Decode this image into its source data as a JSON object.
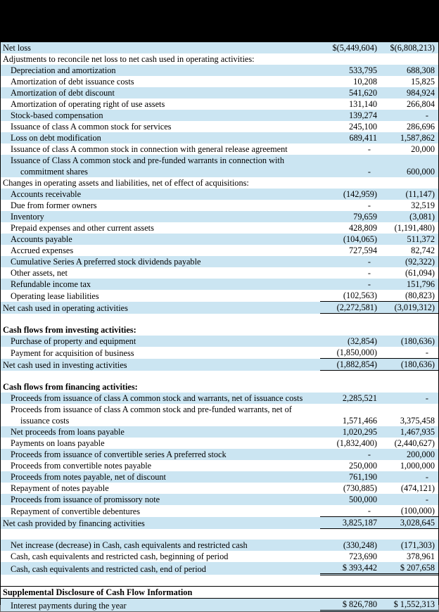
{
  "colors": {
    "row_shade": "#cbe5f2",
    "band": "#000000",
    "text": "#000000"
  },
  "table": {
    "name": "consolidated-statement-of-cash-flows",
    "rows": [
      {
        "label": "Net loss",
        "v1": "$(5,449,604)",
        "v2": "$(6,808,213)",
        "indent": 0,
        "shade": true
      },
      {
        "label": "Adjustments to reconcile net loss to net cash used in operating activities:",
        "v1": "",
        "v2": "",
        "indent": 0
      },
      {
        "label": "Depreciation and amortization",
        "v1": "533,795",
        "v2": "688,308",
        "indent": 1,
        "shade": true
      },
      {
        "label": "Amortization of debt issuance costs",
        "v1": "10,208",
        "v2": "15,825",
        "indent": 1
      },
      {
        "label": "Amortization of debt discount",
        "v1": "541,620",
        "v2": "984,924",
        "indent": 1,
        "shade": true
      },
      {
        "label": "Amortization of operating right of use assets",
        "v1": "131,140",
        "v2": "266,804",
        "indent": 1
      },
      {
        "label": "Stock-based compensation",
        "v1": "139,274",
        "v2": "-",
        "indent": 1,
        "shade": true
      },
      {
        "label": "Issuance of class A common stock for services",
        "v1": "245,100",
        "v2": "286,696",
        "indent": 1
      },
      {
        "label": "Loss on debt modification",
        "v1": "689,411",
        "v2": "1,587,862",
        "indent": 1,
        "shade": true
      },
      {
        "label": "Issuance of class A common stock in connection with general release agreement",
        "v1": "-",
        "v2": "20,000",
        "indent": 1
      },
      {
        "label": "Issuance of Class A common stock and pre-funded warrants in connection with commitment shares",
        "v1": "-",
        "v2": "600,000",
        "indent": 1,
        "shade": true,
        "hang": true
      },
      {
        "label": "Changes in operating assets and liabilities, net of effect of acquisitions:",
        "v1": "",
        "v2": "",
        "indent": 0
      },
      {
        "label": "Accounts receivable",
        "v1": "(142,959)",
        "v2": "(11,147)",
        "indent": 1,
        "shade": true
      },
      {
        "label": "Due from former owners",
        "v1": "-",
        "v2": "32,519",
        "indent": 1
      },
      {
        "label": "Inventory",
        "v1": "79,659",
        "v2": "(3,081)",
        "indent": 1,
        "shade": true
      },
      {
        "label": "Prepaid expenses and other current assets",
        "v1": "428,809",
        "v2": "(1,191,480)",
        "indent": 1
      },
      {
        "label": "Accounts payable",
        "v1": "(104,065)",
        "v2": "511,372",
        "indent": 1,
        "shade": true
      },
      {
        "label": "Accrued expenses",
        "v1": "727,594",
        "v2": "82,742",
        "indent": 1
      },
      {
        "label": "Cumulative Series A preferred stock dividends payable",
        "v1": "-",
        "v2": "(92,322)",
        "indent": 1,
        "shade": true
      },
      {
        "label": "Other assets, net",
        "v1": "-",
        "v2": "(61,094)",
        "indent": 1
      },
      {
        "label": "Refundable income tax",
        "v1": "-",
        "v2": "151,796",
        "indent": 1,
        "shade": true
      },
      {
        "label": "Operating lease liabilities",
        "v1": "(102,563)",
        "v2": "(80,823)",
        "indent": 1,
        "rule": "single"
      },
      {
        "label": "Net cash used in operating activities",
        "v1": "(2,272,581)",
        "v2": "(3,019,312)",
        "indent": 0,
        "shade": true,
        "rule": "single"
      },
      {
        "blank": true
      },
      {
        "label": "Cash flows from investing activities:",
        "v1": "",
        "v2": "",
        "indent": 0,
        "bold": true
      },
      {
        "label": "Purchase of property and equipment",
        "v1": "(32,854)",
        "v2": "(180,636)",
        "indent": 1,
        "shade": true
      },
      {
        "label": "Payment for acquisition of business",
        "v1": "(1,850,000)",
        "v2": "-",
        "indent": 1,
        "rule": "single"
      },
      {
        "label": "Net cash used in investing activities",
        "v1": "(1,882,854)",
        "v2": "(180,636)",
        "indent": 0,
        "shade": true,
        "rule": "single"
      },
      {
        "blank": true
      },
      {
        "label": "Cash flows from financing activities:",
        "v1": "",
        "v2": "",
        "indent": 0,
        "bold": true
      },
      {
        "label": "Proceeds from issuance of class A common stock and warrants, net of issuance costs",
        "v1": "2,285,521",
        "v2": "-",
        "indent": 1,
        "shade": true
      },
      {
        "label": "Proceeds from issuance of class A common stock and pre-funded warrants, net of issuance costs",
        "v1": "1,571,466",
        "v2": "3,375,458",
        "indent": 1,
        "hang": true
      },
      {
        "label": "Net proceeds from loans payable",
        "v1": "1,020,295",
        "v2": "1,467,935",
        "indent": 1,
        "shade": true
      },
      {
        "label": "Payments on loans payable",
        "v1": "(1,832,400)",
        "v2": "(2,440,627)",
        "indent": 1
      },
      {
        "label": "Proceeds from issuance of convertible series A preferred stock",
        "v1": "-",
        "v2": "200,000",
        "indent": 1,
        "shade": true
      },
      {
        "label": "Proceeds from convertible notes payable",
        "v1": "250,000",
        "v2": "1,000,000",
        "indent": 1
      },
      {
        "label": "Proceeds from notes payable, net of discount",
        "v1": "761,190",
        "v2": "-",
        "indent": 1,
        "shade": true
      },
      {
        "label": "Repayment of notes payable",
        "v1": "(730,885)",
        "v2": "(474,121)",
        "indent": 1
      },
      {
        "label": "Proceeds from issuance of promissory note",
        "v1": "500,000",
        "v2": "-",
        "indent": 1,
        "shade": true
      },
      {
        "label": "Repayment of convertible debentures",
        "v1": "-",
        "v2": "(100,000)",
        "indent": 1,
        "rule": "single"
      },
      {
        "label": "Net cash provided by financing activities",
        "v1": "3,825,187",
        "v2": "3,028,645",
        "indent": 0,
        "shade": true,
        "rule": "single"
      },
      {
        "blank": true
      },
      {
        "label": "Net increase (decrease) in Cash, cash equivalents and restricted cash",
        "v1": "(330,248)",
        "v2": "(171,303)",
        "indent": 1,
        "shade": true
      },
      {
        "label": "Cash, cash equivalents and restricted cash, beginning of period",
        "v1": "723,690",
        "v2": "378,961",
        "indent": 1
      },
      {
        "label": "Cash, cash equivalents and restricted cash, end of period",
        "v1": "$ 393,442",
        "v2": "$ 207,658",
        "indent": 1,
        "shade": true,
        "rule": "double"
      },
      {
        "blank": true
      },
      {
        "label": "Supplemental Disclosure of Cash Flow Information",
        "v1": "",
        "v2": "",
        "indent": 0,
        "bold": true,
        "topline": true
      },
      {
        "label": "Interest payments during the year",
        "v1": "$ 826,780",
        "v2": "$ 1,552,313",
        "indent": 1,
        "shade": true,
        "rule": "double",
        "topline": true
      }
    ]
  }
}
